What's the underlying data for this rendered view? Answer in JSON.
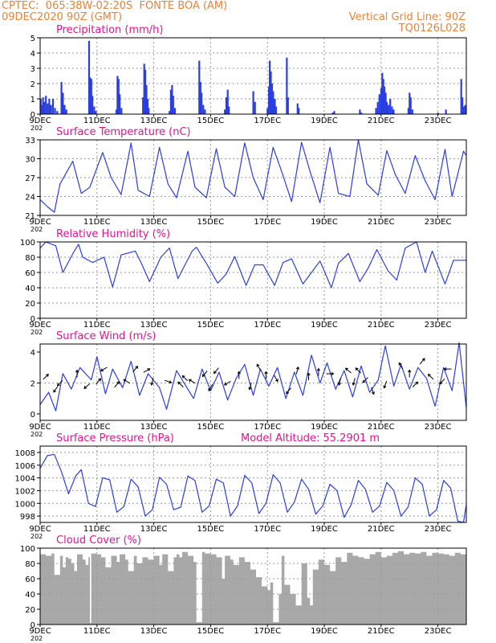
{
  "header": {
    "left_line1": "CPTEC:  065:38W-02:20S  FONTE BOA (AM)",
    "left_line2": "09DEC2020 90Z (GMT)",
    "right_line1": "Vertical Grid Line: 90Z",
    "right_line2": "TQ0126L028",
    "year_stub": "202"
  },
  "colors": {
    "header": "#e8833a",
    "title": "#e0168f",
    "series": "#2a3fe0",
    "arrows": "#000000",
    "cloud": "#a8a8a8",
    "grid": "#9a9a9a",
    "frame": "#000000"
  },
  "x_axis": {
    "ticks": [
      "9DEC",
      "11DEC",
      "13DEC",
      "15DEC",
      "17DEC",
      "19DEC",
      "21DEC",
      "23DEC"
    ],
    "tick_days": [
      0,
      2,
      4,
      6,
      8,
      10,
      12,
      14
    ],
    "range_days": [
      0,
      15
    ]
  },
  "chart_data": [
    {
      "id": "precip",
      "type": "bar",
      "title": "Precipitation (mm/h)",
      "ylim": [
        0,
        5
      ],
      "yticks": [
        0,
        1,
        2,
        3,
        4,
        5
      ],
      "grid": true,
      "bars": [
        [
          0.02,
          1.0
        ],
        [
          0.06,
          0.6
        ],
        [
          0.1,
          1.1
        ],
        [
          0.14,
          0.8
        ],
        [
          0.2,
          1.2
        ],
        [
          0.26,
          0.7
        ],
        [
          0.32,
          1.0
        ],
        [
          0.38,
          0.6
        ],
        [
          0.45,
          1.0
        ],
        [
          0.52,
          0.4
        ],
        [
          0.6,
          0.2
        ],
        [
          0.75,
          2.1
        ],
        [
          0.8,
          1.4
        ],
        [
          0.86,
          0.6
        ],
        [
          0.92,
          0.3
        ],
        [
          1.72,
          4.8
        ],
        [
          1.76,
          2.4
        ],
        [
          1.8,
          2.3
        ],
        [
          1.84,
          1.2
        ],
        [
          1.9,
          0.5
        ],
        [
          1.96,
          0.2
        ],
        [
          2.68,
          0.3
        ],
        [
          2.72,
          2.5
        ],
        [
          2.76,
          2.3
        ],
        [
          2.8,
          1.3
        ],
        [
          2.86,
          0.4
        ],
        [
          3.62,
          1.1
        ],
        [
          3.66,
          3.3
        ],
        [
          3.7,
          2.9
        ],
        [
          3.74,
          1.9
        ],
        [
          3.78,
          1.0
        ],
        [
          3.82,
          0.4
        ],
        [
          4.55,
          0.2
        ],
        [
          4.6,
          1.6
        ],
        [
          4.64,
          1.9
        ],
        [
          4.68,
          1.2
        ],
        [
          4.74,
          0.4
        ],
        [
          5.6,
          3.5
        ],
        [
          5.64,
          2.1
        ],
        [
          5.68,
          1.4
        ],
        [
          5.74,
          0.6
        ],
        [
          5.8,
          0.3
        ],
        [
          6.5,
          0.3
        ],
        [
          6.55,
          1.1
        ],
        [
          6.6,
          1.6
        ],
        [
          6.64,
          0.5
        ],
        [
          7.5,
          1.5
        ],
        [
          7.56,
          0.8
        ],
        [
          8.0,
          0.4
        ],
        [
          8.05,
          1.8
        ],
        [
          8.08,
          3.5
        ],
        [
          8.12,
          2.8
        ],
        [
          8.16,
          2.0
        ],
        [
          8.2,
          1.5
        ],
        [
          8.26,
          1.0
        ],
        [
          8.3,
          0.5
        ],
        [
          8.68,
          3.7
        ],
        [
          8.72,
          1.1
        ],
        [
          9.06,
          0.7
        ],
        [
          9.1,
          0.4
        ],
        [
          10.3,
          0.1
        ],
        [
          10.35,
          0.2
        ],
        [
          11.25,
          0.3
        ],
        [
          11.3,
          0.1
        ],
        [
          11.82,
          0.4
        ],
        [
          11.88,
          0.8
        ],
        [
          11.94,
          1.3
        ],
        [
          12.0,
          1.7
        ],
        [
          12.04,
          2.7
        ],
        [
          12.08,
          2.3
        ],
        [
          12.12,
          1.8
        ],
        [
          12.16,
          1.4
        ],
        [
          12.2,
          0.8
        ],
        [
          12.26,
          0.6
        ],
        [
          12.32,
          1.0
        ],
        [
          12.38,
          0.5
        ],
        [
          12.44,
          0.3
        ],
        [
          12.96,
          0.4
        ],
        [
          13.0,
          1.4
        ],
        [
          13.04,
          1.1
        ],
        [
          13.1,
          0.3
        ],
        [
          14.0,
          0.1
        ],
        [
          14.28,
          0.3
        ],
        [
          14.82,
          2.3
        ],
        [
          14.86,
          1.1
        ],
        [
          14.9,
          0.5
        ],
        [
          14.96,
          0.6
        ]
      ]
    },
    {
      "id": "temp",
      "type": "line",
      "title": "Surface Temperature (nC)",
      "ylim": [
        21,
        33
      ],
      "yticks": [
        21,
        24,
        27,
        30,
        33
      ],
      "grid": true,
      "x": [
        0,
        0.25,
        0.5,
        0.7,
        1.15,
        1.45,
        1.75,
        2.2,
        2.5,
        2.85,
        3.2,
        3.45,
        3.85,
        4.2,
        4.5,
        4.8,
        5.2,
        5.45,
        5.85,
        6.2,
        6.5,
        6.85,
        7.2,
        7.5,
        7.85,
        8.2,
        8.5,
        8.85,
        9.2,
        9.5,
        9.85,
        10.2,
        10.5,
        10.9,
        11.2,
        11.5,
        11.9,
        12.2,
        12.5,
        12.85,
        13.2,
        13.55,
        13.9,
        14.25,
        14.5,
        14.9,
        15
      ],
      "values": [
        23.5,
        22.4,
        21.5,
        26.0,
        29.6,
        24.5,
        25.5,
        31.0,
        27.0,
        24.3,
        32.5,
        25.0,
        24.0,
        31.8,
        26.0,
        23.8,
        31.2,
        25.5,
        23.8,
        31.6,
        25.5,
        24.0,
        32.5,
        27.0,
        23.5,
        31.8,
        28.0,
        23.2,
        32.6,
        28.0,
        23.0,
        31.8,
        24.5,
        24.0,
        33.0,
        26.0,
        24.2,
        31.3,
        27.5,
        24.5,
        30.5,
        26.5,
        23.5,
        31.5,
        24.0,
        31.2,
        30.5
      ]
    },
    {
      "id": "rh",
      "type": "line",
      "title": "Relative Humidity (%)",
      "ylim": [
        0,
        100
      ],
      "yticks": [
        0,
        20,
        40,
        60,
        80,
        100
      ],
      "grid": true,
      "x": [
        0,
        0.2,
        0.55,
        0.8,
        1.2,
        1.35,
        1.5,
        1.85,
        2.25,
        2.55,
        2.85,
        3.35,
        3.55,
        3.85,
        4.25,
        4.55,
        4.85,
        5.35,
        5.5,
        5.85,
        6.25,
        6.55,
        6.85,
        7.25,
        7.55,
        7.85,
        8.25,
        8.55,
        8.85,
        9.25,
        9.55,
        9.85,
        10.25,
        10.5,
        10.85,
        11.25,
        11.55,
        11.85,
        12.25,
        12.55,
        12.85,
        13.25,
        13.55,
        13.8,
        14.25,
        14.55,
        14.85,
        15
      ],
      "values": [
        92,
        100,
        95,
        60,
        88,
        97,
        80,
        73,
        80,
        41,
        83,
        88,
        73,
        48,
        80,
        92,
        52,
        88,
        93,
        72,
        46,
        58,
        81,
        43,
        70,
        70,
        43,
        73,
        78,
        45,
        60,
        75,
        40,
        72,
        85,
        48,
        66,
        90,
        62,
        50,
        92,
        100,
        60,
        88,
        45,
        76,
        76,
        76
      ]
    },
    {
      "id": "wind",
      "type": "line",
      "title": "Surface Wind (m/s)",
      "ylim": [
        0,
        4
      ],
      "yticks": [
        0,
        2,
        4
      ],
      "grid": true,
      "x": [
        0,
        0.3,
        0.55,
        0.8,
        1.1,
        1.4,
        1.8,
        2.0,
        2.3,
        2.55,
        2.9,
        3.2,
        3.5,
        3.8,
        4.2,
        4.45,
        4.8,
        5.1,
        5.4,
        5.7,
        6.0,
        6.3,
        6.6,
        6.9,
        7.2,
        7.5,
        7.75,
        8.05,
        8.35,
        8.65,
        8.95,
        9.25,
        9.55,
        9.85,
        10.1,
        10.4,
        10.7,
        11.0,
        11.3,
        11.6,
        11.9,
        12.15,
        12.45,
        12.7,
        13.0,
        13.3,
        13.6,
        13.9,
        14.2,
        14.5,
        14.75,
        15
      ],
      "values": [
        0.6,
        1.4,
        0.2,
        2.6,
        1.6,
        3.0,
        2.2,
        3.7,
        1.3,
        2.9,
        1.7,
        3.4,
        1.2,
        2.6,
        1.7,
        0.3,
        2.8,
        1.9,
        1.0,
        2.9,
        1.5,
        2.7,
        0.9,
        2.3,
        3.2,
        1.2,
        2.9,
        1.8,
        3.0,
        1.0,
        2.7,
        1.2,
        3.8,
        2.0,
        3.3,
        1.6,
        2.8,
        1.1,
        3.1,
        1.4,
        2.2,
        4.4,
        1.8,
        3.2,
        1.6,
        3.0,
        2.3,
        0.5,
        3.0,
        1.5,
        4.6,
        0.4
      ],
      "arrows": [
        [
          0.2,
          2.4,
          45
        ],
        [
          0.55,
          1.6,
          215
        ],
        [
          0.7,
          2.0,
          225
        ],
        [
          1.3,
          2.6,
          0
        ],
        [
          1.65,
          1.8,
          230
        ],
        [
          2.05,
          2.1,
          40
        ],
        [
          2.25,
          2.9,
          240
        ],
        [
          2.7,
          1.9,
          40
        ],
        [
          3.05,
          2.1,
          300
        ],
        [
          3.35,
          2.9,
          40
        ],
        [
          3.75,
          2.8,
          60
        ],
        [
          3.95,
          2.1,
          195
        ],
        [
          4.5,
          2.1,
          110
        ],
        [
          4.95,
          1.9,
          315
        ],
        [
          5.1,
          2.3,
          315
        ],
        [
          5.35,
          2.1,
          300
        ],
        [
          5.8,
          2.6,
          220
        ],
        [
          6.0,
          1.7,
          210
        ],
        [
          6.2,
          2.8,
          220
        ],
        [
          6.6,
          2.0,
          240
        ],
        [
          7.0,
          2.5,
          0
        ],
        [
          7.4,
          1.8,
          195
        ],
        [
          7.7,
          3.0,
          330
        ],
        [
          7.95,
          2.5,
          0
        ],
        [
          8.3,
          2.3,
          150
        ],
        [
          8.75,
          1.5,
          220
        ],
        [
          9.05,
          2.8,
          15
        ],
        [
          9.45,
          2.4,
          0
        ],
        [
          9.8,
          2.7,
          0
        ],
        [
          10.2,
          2.6,
          90
        ],
        [
          10.55,
          2.1,
          195
        ],
        [
          10.85,
          2.8,
          310
        ],
        [
          11.05,
          2.1,
          195
        ],
        [
          11.2,
          2.8,
          315
        ],
        [
          11.45,
          2.2,
          225
        ],
        [
          11.7,
          1.5,
          160
        ],
        [
          12.15,
          1.9,
          200
        ],
        [
          12.7,
          3.1,
          330
        ],
        [
          13.0,
          2.6,
          0
        ],
        [
          13.2,
          1.9,
          45
        ],
        [
          13.45,
          3.4,
          40
        ],
        [
          13.75,
          2.4,
          315
        ],
        [
          14.15,
          2.1,
          225
        ],
        [
          14.35,
          2.9,
          270
        ]
      ]
    },
    {
      "id": "pres",
      "type": "line",
      "title": "Surface Pressure (hPa)",
      "annotation": "Model Altitude: 55.2901 m",
      "ylim": [
        997,
        1009
      ],
      "yticks": [
        998,
        1000,
        1002,
        1004,
        1006,
        1008
      ],
      "grid": true,
      "x": [
        0,
        0.25,
        0.5,
        0.75,
        1.0,
        1.25,
        1.45,
        1.7,
        1.95,
        2.2,
        2.45,
        2.7,
        2.95,
        3.2,
        3.45,
        3.7,
        3.95,
        4.2,
        4.45,
        4.7,
        4.95,
        5.2,
        5.45,
        5.7,
        5.95,
        6.2,
        6.45,
        6.7,
        6.95,
        7.2,
        7.45,
        7.7,
        7.95,
        8.2,
        8.45,
        8.7,
        8.95,
        9.2,
        9.45,
        9.7,
        9.95,
        10.2,
        10.45,
        10.7,
        10.95,
        11.2,
        11.45,
        11.7,
        11.95,
        12.2,
        12.45,
        12.7,
        12.95,
        13.2,
        13.45,
        13.7,
        13.95,
        14.2,
        14.45,
        14.7,
        14.9,
        15
      ],
      "values": [
        1005.5,
        1007.5,
        1007.7,
        1005.0,
        1001.5,
        1004.3,
        1005.3,
        1000.0,
        999.5,
        1004.0,
        1003.7,
        998.6,
        999.5,
        1003.8,
        1002.6,
        998.0,
        999.0,
        1004.1,
        1003.0,
        999.0,
        999.4,
        1004.3,
        1003.6,
        998.6,
        999.6,
        1003.8,
        1003.2,
        998.0,
        999.6,
        1004.4,
        1003.2,
        998.4,
        1000.0,
        1004.5,
        1003.2,
        998.6,
        1000.2,
        1003.8,
        1002.2,
        998.3,
        999.6,
        1003.0,
        1002.0,
        997.8,
        999.8,
        1003.6,
        1002.2,
        998.6,
        999.6,
        1003.3,
        1002.0,
        998.0,
        999.4,
        1004.0,
        1003.0,
        998.0,
        999.0,
        1003.6,
        1002.4,
        997.2,
        997.0,
        999.8
      ]
    },
    {
      "id": "cloud",
      "type": "area",
      "title": "Cloud Cover (%)",
      "ylim": [
        0,
        100
      ],
      "yticks": [
        0,
        20,
        40,
        60,
        80,
        100
      ],
      "grid": true,
      "x": [
        0,
        0.2,
        0.4,
        0.5,
        0.7,
        0.8,
        0.9,
        1.0,
        1.1,
        1.2,
        1.3,
        1.5,
        1.6,
        1.7,
        1.75,
        1.8,
        2.0,
        2.15,
        2.3,
        2.5,
        2.7,
        2.8,
        3.0,
        3.1,
        3.3,
        3.4,
        3.6,
        3.8,
        4.0,
        4.2,
        4.3,
        4.5,
        4.7,
        4.8,
        4.9,
        5.0,
        5.2,
        5.4,
        5.5,
        5.7,
        5.8,
        6.0,
        6.2,
        6.4,
        6.5,
        6.7,
        6.8,
        7.0,
        7.2,
        7.4,
        7.6,
        7.8,
        8.0,
        8.1,
        8.2,
        8.4,
        8.5,
        8.6,
        8.8,
        9.0,
        9.2,
        9.4,
        9.5,
        9.6,
        9.8,
        10.0,
        10.2,
        10.4,
        10.6,
        10.8,
        11.0,
        11.2,
        11.4,
        11.6,
        11.8,
        12.0,
        12.2,
        12.4,
        12.6,
        12.8,
        13.0,
        13.2,
        13.4,
        13.6,
        13.8,
        14.0,
        14.2,
        14.4,
        14.6,
        14.8,
        15
      ],
      "values": [
        92,
        90,
        93,
        65,
        90,
        75,
        88,
        86,
        80,
        70,
        92,
        85,
        78,
        88,
        2,
        93,
        92,
        88,
        75,
        90,
        82,
        92,
        85,
        70,
        90,
        80,
        88,
        85,
        90,
        78,
        92,
        70,
        88,
        92,
        88,
        95,
        90,
        82,
        3,
        95,
        93,
        92,
        88,
        60,
        90,
        85,
        78,
        88,
        82,
        72,
        62,
        50,
        45,
        55,
        3,
        40,
        90,
        52,
        40,
        25,
        80,
        35,
        25,
        72,
        85,
        78,
        70,
        88,
        82,
        94,
        90,
        88,
        86,
        92,
        95,
        88,
        90,
        94,
        96,
        92,
        94,
        93,
        95,
        90,
        94,
        93,
        92,
        90,
        94,
        92,
        95
      ]
    }
  ]
}
